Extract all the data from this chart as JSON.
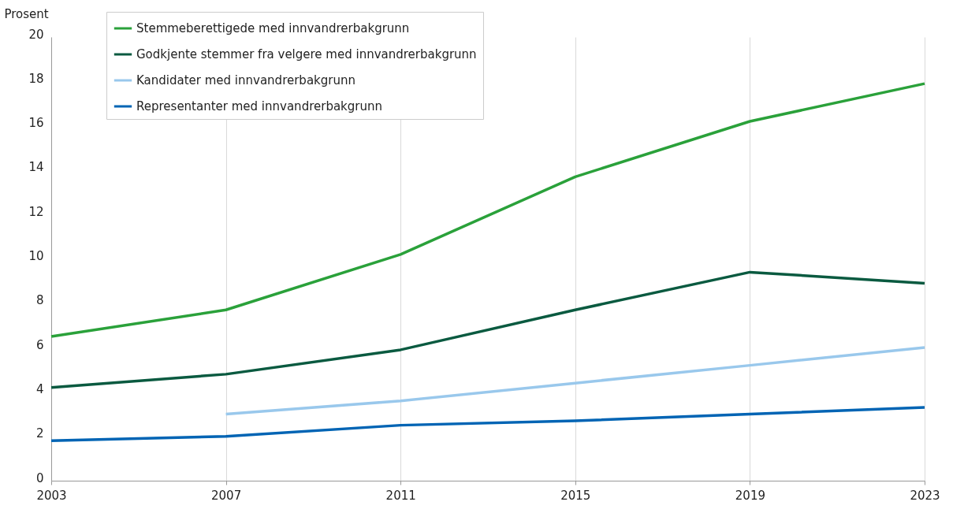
{
  "chart_data": {
    "type": "line",
    "ylabel": "Prosent",
    "x": [
      2003,
      2007,
      2011,
      2015,
      2019,
      2023
    ],
    "xlim": [
      2003,
      2023
    ],
    "xticks": [
      2003,
      2007,
      2011,
      2015,
      2019,
      2023
    ],
    "ylim": [
      0,
      20
    ],
    "yticks": [
      0,
      2,
      4,
      6,
      8,
      10,
      12,
      14,
      16,
      18,
      20
    ],
    "grid": "x",
    "legend": "top left",
    "line_style": "solid",
    "marker": "none",
    "series": [
      {
        "name": "Stemmeberettigede med innvandrerbakgrunn",
        "color": "#2aa13a",
        "values": [
          6.5,
          7.7,
          10.2,
          13.7,
          16.2,
          17.9
        ]
      },
      {
        "name": "Godkjente stemmer fra velgere med innvandrerbakgrunn",
        "color": "#0a5a40",
        "values": [
          4.2,
          4.8,
          5.9,
          7.7,
          9.4,
          8.9
        ]
      },
      {
        "name": "Kandidater med innvandrerbakgrunn",
        "color": "#99c8ec",
        "values": [
          null,
          3.0,
          3.6,
          4.4,
          5.2,
          6.0
        ]
      },
      {
        "name": "Representanter med innvandrerbakgrunn",
        "color": "#0064b4",
        "values": [
          1.8,
          2.0,
          2.5,
          2.7,
          3.0,
          3.3
        ]
      }
    ]
  }
}
